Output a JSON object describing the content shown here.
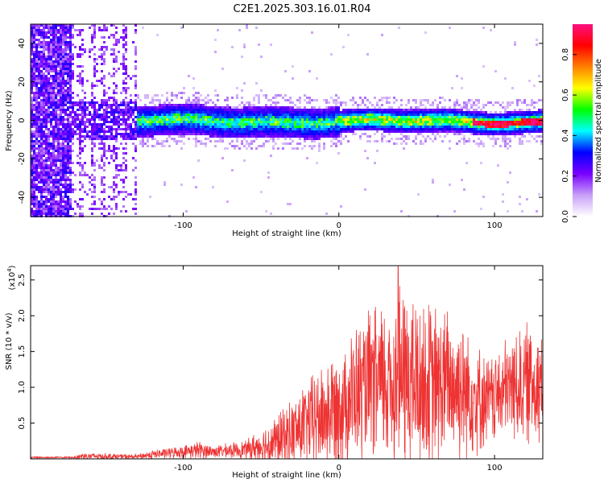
{
  "title": "C2E1.2025.303.16.01.R04",
  "chart_data": [
    {
      "type": "heatmap",
      "xlabel": "Height of straight line (km)",
      "ylabel": "Frequency (Hz)",
      "xlim": [
        -198,
        131
      ],
      "ylim": [
        -50,
        50
      ],
      "xticks": [
        -100,
        0,
        100
      ],
      "yticks": [
        -40,
        -20,
        0,
        20,
        40
      ],
      "xtick_labels": [
        "-100",
        "0",
        "100"
      ],
      "ytick_labels": [
        "-40",
        "-20",
        "0",
        "20",
        "40"
      ],
      "colorbar": {
        "label": "Normalized spectral amplitude",
        "range": [
          0,
          0.95
        ],
        "ticks": [
          0.0,
          0.2,
          0.4,
          0.6,
          0.8
        ],
        "tick_labels": [
          "0.0",
          "0.2",
          "0.4",
          "0.6",
          "0.8"
        ],
        "colormap": [
          "#ffffff",
          "#c8a0f8",
          "#7a00ff",
          "#0000ff",
          "#00ffff",
          "#00ff00",
          "#ffff00",
          "#ff8000",
          "#ff0000",
          "#ff1080"
        ]
      },
      "description_of_data": {
        "noise_region_km": [
          -198,
          -130
        ],
        "signal_band_center_hz": 0,
        "signal_band_halfwidth_hz": 6,
        "peak_region_km": [
          85,
          131
        ]
      }
    },
    {
      "type": "line",
      "xlabel": "Height of straight line (km)",
      "ylabel": "SNR (10 * v/v)",
      "y_multiplier": "(x10",
      "y_multiplier_exp": "4",
      "y_multiplier_close": ")",
      "xlim": [
        -198,
        131
      ],
      "ylim": [
        0,
        2.7
      ],
      "xticks": [
        -100,
        0,
        100
      ],
      "yticks": [
        0.5,
        1.0,
        1.5,
        2.0,
        2.5
      ],
      "xtick_labels": [
        "-100",
        "0",
        "100"
      ],
      "ytick_labels": [
        "0.5",
        "1.0",
        "1.5",
        "2.0",
        "2.5"
      ],
      "color": "#ee3333",
      "envelope": {
        "x": [
          -198,
          -170,
          -165,
          -130,
          -120,
          -100,
          -90,
          -80,
          -60,
          -45,
          -30,
          -20,
          -10,
          0,
          10,
          20,
          30,
          40,
          50,
          60,
          70,
          80,
          90,
          95,
          100,
          110,
          120,
          131
        ],
        "mean": [
          0.02,
          0.02,
          0.04,
          0.03,
          0.06,
          0.1,
          0.12,
          0.1,
          0.13,
          0.2,
          0.35,
          0.5,
          0.6,
          0.75,
          0.9,
          1.0,
          1.05,
          1.15,
          1.05,
          1.0,
          1.05,
          1.0,
          0.85,
          0.8,
          0.85,
          1.0,
          1.05,
          1.1
        ],
        "spread": [
          0.01,
          0.01,
          0.05,
          0.03,
          0.06,
          0.08,
          0.12,
          0.08,
          0.12,
          0.3,
          0.45,
          0.6,
          0.7,
          0.8,
          0.9,
          1.0,
          1.1,
          1.3,
          1.2,
          1.1,
          1.0,
          1.0,
          0.7,
          0.6,
          0.6,
          0.7,
          0.8,
          0.8
        ]
      },
      "peak": {
        "x": 38,
        "y": 2.7
      }
    }
  ]
}
